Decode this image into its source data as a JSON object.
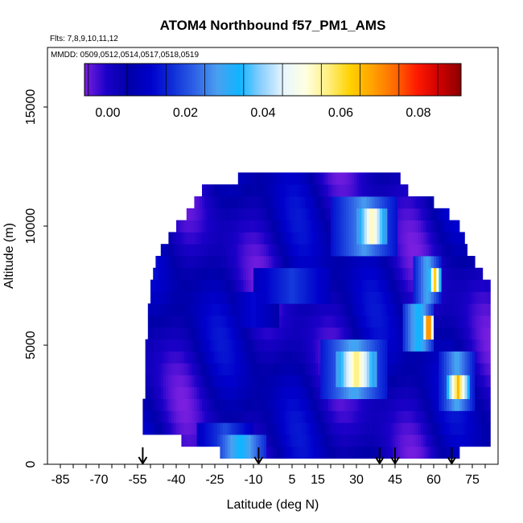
{
  "chart_data": {
    "type": "heatmap",
    "title": "ATOM4 Northbound f57_PM1_AMS",
    "flights_label": "Flts: 7,8,9,10,11,12",
    "dates_label": "MMDD: 0509,0512,0514,0517,0518,0519",
    "xlabel": "Latitude (deg N)",
    "ylabel": "Altitude (m)",
    "xlim": [
      -90,
      85
    ],
    "ylim": [
      0,
      17500
    ],
    "x_ticks": [
      -85,
      -70,
      -55,
      -40,
      -25,
      -10,
      5,
      15,
      30,
      45,
      60,
      75
    ],
    "x_tick_labels": [
      "-85",
      "-70",
      "-55",
      "-40",
      "-25",
      "-10",
      "5",
      "15",
      "30",
      "45",
      "60",
      "75"
    ],
    "y_ticks": [
      0,
      5000,
      10000,
      15000
    ],
    "y_tick_labels": [
      "0",
      "5000",
      "10000",
      "15000"
    ],
    "colorbar": {
      "range": [
        -0.006,
        0.091
      ],
      "ticks": [
        0.0,
        0.02,
        0.04,
        0.06,
        0.08
      ],
      "tick_labels": [
        "0.00",
        "0.02",
        "0.04",
        "0.06",
        "0.08"
      ],
      "colors": [
        "#7a1fe0",
        "#1b00c8",
        "#0000a8",
        "#0000cc",
        "#1030d8",
        "#2f63e6",
        "#4aa0f0",
        "#10b4ff",
        "#8fd0ff",
        "#e8f6ff",
        "#ffffe0",
        "#fff080",
        "#ffd200",
        "#ffa200",
        "#ff6a00",
        "#ff1a00",
        "#d00000",
        "#8b0000"
      ]
    },
    "latitude_markers": [
      -53,
      -8,
      39,
      45,
      67
    ],
    "altitude_bins_m": [
      500,
      1000,
      1500,
      2000,
      2500,
      3000,
      3500,
      4000,
      4500,
      5000,
      5500,
      6000,
      6500,
      7000,
      7500,
      8000,
      8500,
      9000,
      9500,
      10000,
      10500,
      11000,
      11500,
      12000
    ],
    "coverage": [
      {
        "alt": 500,
        "lat_min": -23,
        "lat_max": 70
      },
      {
        "alt": 1000,
        "lat_min": -38,
        "lat_max": 82
      },
      {
        "alt": 1500,
        "lat_min": -53,
        "lat_max": 82
      },
      {
        "alt": 2000,
        "lat_min": -53,
        "lat_max": 82
      },
      {
        "alt": 2500,
        "lat_min": -53,
        "lat_max": 82
      },
      {
        "alt": 3000,
        "lat_min": -52,
        "lat_max": 82
      },
      {
        "alt": 3500,
        "lat_min": -52,
        "lat_max": 82
      },
      {
        "alt": 4000,
        "lat_min": -52,
        "lat_max": 82
      },
      {
        "alt": 4500,
        "lat_min": -52,
        "lat_max": 82
      },
      {
        "alt": 5000,
        "lat_min": -52,
        "lat_max": 82
      },
      {
        "alt": 5500,
        "lat_min": -51,
        "lat_max": 82
      },
      {
        "alt": 6000,
        "lat_min": -51,
        "lat_max": 82
      },
      {
        "alt": 6500,
        "lat_min": -51,
        "lat_max": 82
      },
      {
        "alt": 7000,
        "lat_min": -50,
        "lat_max": 82
      },
      {
        "alt": 7500,
        "lat_min": -50,
        "lat_max": 82
      },
      {
        "alt": 8000,
        "lat_min": -49,
        "lat_max": 79
      },
      {
        "alt": 8500,
        "lat_min": -48,
        "lat_max": 76
      },
      {
        "alt": 9000,
        "lat_min": -46,
        "lat_max": 73
      },
      {
        "alt": 9500,
        "lat_min": -43,
        "lat_max": 72
      },
      {
        "alt": 10000,
        "lat_min": -40,
        "lat_max": 70
      },
      {
        "alt": 10500,
        "lat_min": -36,
        "lat_max": 66
      },
      {
        "alt": 11000,
        "lat_min": -33,
        "lat_max": 60
      },
      {
        "alt": 11500,
        "lat_min": -30,
        "lat_max": 50
      },
      {
        "alt": 12000,
        "lat_min": -16,
        "lat_max": 47
      }
    ],
    "features": [
      {
        "lat_min": -25,
        "lat_max": -5,
        "alt_min": 500,
        "alt_max": 1000,
        "value": 0.035
      },
      {
        "lat_min": -32,
        "lat_max": -10,
        "alt_min": 1000,
        "alt_max": 1500,
        "value": 0.02
      },
      {
        "lat_min": -20,
        "lat_max": 0,
        "alt_min": 6000,
        "alt_max": 7000,
        "value": 0.012
      },
      {
        "lat_min": 22,
        "lat_max": 38,
        "alt_min": 3500,
        "alt_max": 4500,
        "value": 0.058
      },
      {
        "lat_min": 16,
        "lat_max": 42,
        "alt_min": 3000,
        "alt_max": 5000,
        "value": 0.03
      },
      {
        "lat_min": 30,
        "lat_max": 42,
        "alt_min": 9500,
        "alt_max": 10500,
        "value": 0.055
      },
      {
        "lat_min": 20,
        "lat_max": 46,
        "alt_min": 9000,
        "alt_max": 11000,
        "value": 0.028
      },
      {
        "lat_min": 56,
        "lat_max": 60,
        "alt_min": 5500,
        "alt_max": 6000,
        "value": 0.08
      },
      {
        "lat_min": 48,
        "lat_max": 60,
        "alt_min": 5000,
        "alt_max": 6500,
        "value": 0.035
      },
      {
        "lat_min": 58,
        "lat_max": 63,
        "alt_min": 7500,
        "alt_max": 8000,
        "value": 0.062
      },
      {
        "lat_min": 52,
        "lat_max": 63,
        "alt_min": 7000,
        "alt_max": 8500,
        "value": 0.03
      },
      {
        "lat_min": 65,
        "lat_max": 74,
        "alt_min": 3000,
        "alt_max": 3500,
        "value": 0.065
      },
      {
        "lat_min": 62,
        "lat_max": 76,
        "alt_min": 2500,
        "alt_max": 4500,
        "value": 0.03
      },
      {
        "lat_min": 18,
        "lat_max": 30,
        "alt_min": 2000,
        "alt_max": 2500,
        "value": -0.004
      },
      {
        "lat_min": -50,
        "lat_max": -40,
        "alt_min": 8000,
        "alt_max": 9000,
        "value": -0.003
      },
      {
        "lat_min": -10,
        "lat_max": 20,
        "alt_min": 7000,
        "alt_max": 8000,
        "value": 0.018
      }
    ]
  }
}
